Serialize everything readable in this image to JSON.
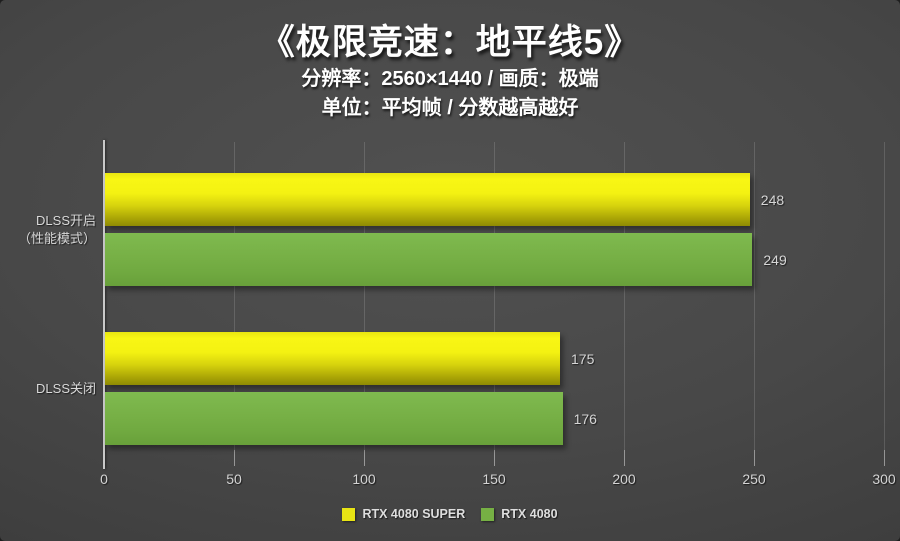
{
  "header": {
    "title": "《极限竞速：地平线5》",
    "subtitle_line1": "分辨率：2560×1440 / 画质：极端",
    "subtitle_line2": "单位：平均帧 / 分数越高越好"
  },
  "chart_data": {
    "type": "bar",
    "orientation": "horizontal",
    "title": "《极限竞速：地平线5》",
    "categories": [
      "DLSS开启（性能模式）",
      "DLSS关闭"
    ],
    "category_lines": [
      [
        "DLSS开启",
        "（性能模式）"
      ],
      [
        "DLSS关闭"
      ]
    ],
    "series": [
      {
        "name": "RTX 4080 SUPER",
        "values": [
          248,
          175
        ],
        "color": "#e8e414"
      },
      {
        "name": "RTX 4080",
        "values": [
          249,
          176
        ],
        "color": "#76b044"
      }
    ],
    "xlim": [
      0,
      300
    ],
    "xticks": [
      0,
      50,
      100,
      150,
      200,
      250,
      300
    ],
    "grid": true,
    "value_labels": true,
    "legend_position": "bottom"
  },
  "colors": {
    "background_center": "#515151",
    "background_edge": "#2e2e2e",
    "bar_yellow": "#e8e414",
    "bar_green": "#76b044",
    "axis_line": "#c9c9c9",
    "label_text": "#d6d6d6",
    "title_text": "#ffffff"
  }
}
